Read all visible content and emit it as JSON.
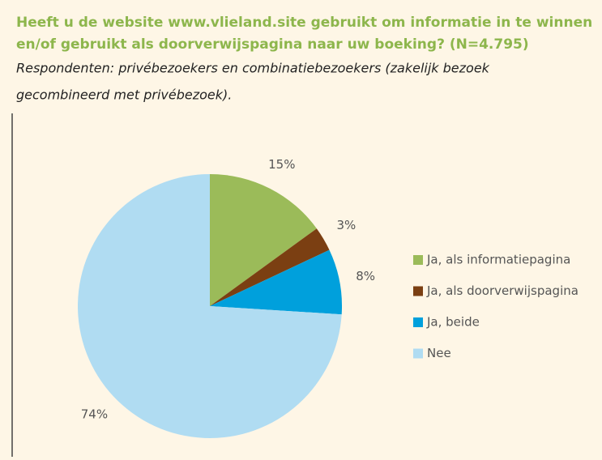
{
  "chart_data": {
    "type": "pie",
    "title": [
      "Heeft u de website www.vlieland.site gebruikt om informatie in te winnen",
      "en/of gebruikt als doorverwijspagina naar uw boeking? (N=4.795)"
    ],
    "subtitle": [
      "Respondenten: privébezoekers en combinatiebezoekers (zakelijk bezoek",
      "gecombineerd met privébezoek)."
    ],
    "categories": [
      "Ja, als informatiepagina",
      "Ja, als doorverwijspagina",
      "Ja, beide",
      "Nee"
    ],
    "values": [
      15,
      3,
      8,
      74
    ],
    "value_labels": [
      "15%",
      "3%",
      "8%",
      "74%"
    ],
    "colors": [
      "#9bbb59",
      "#7b3f12",
      "#00a0dc",
      "#b0dcf2"
    ],
    "legend": "right"
  }
}
